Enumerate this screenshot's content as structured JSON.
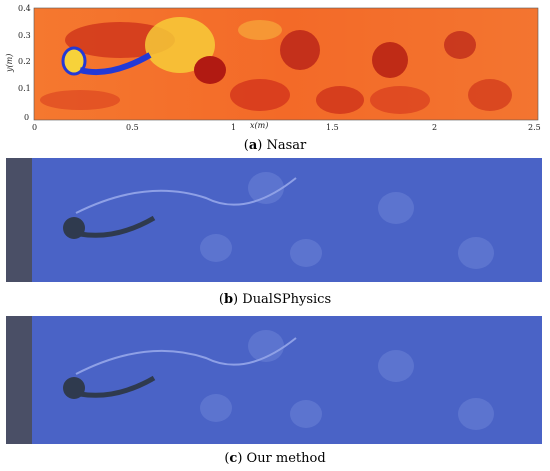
{
  "panel_a": {
    "caption_letter": "a",
    "caption_text": "Nasar",
    "x_axis": {
      "label": "x(m)",
      "ticks": [
        "0",
        "0.5",
        "1",
        "1.5",
        "2",
        "2.5"
      ],
      "range": [
        0,
        2.5
      ]
    },
    "y_axis": {
      "label": "y(m)",
      "ticks": [
        "0",
        "0.1",
        "0.2",
        "0.3",
        "0.4"
      ],
      "range": [
        0,
        0.4
      ]
    },
    "colors": {
      "background": "#f4692a",
      "wake_dark": "#b11a12",
      "high": "#f7d23a",
      "body": "#2339d6"
    }
  },
  "panel_b": {
    "caption_letter": "b",
    "caption_text": "DualSPhysics",
    "colors": {
      "fluid": "#4a63c6",
      "wall": "#4a4f66",
      "body": "#2f3a4e"
    }
  },
  "panel_c": {
    "caption_letter": "c",
    "caption_text": "Our method",
    "colors": {
      "fluid": "#4a63c6",
      "wall": "#4a4f66",
      "body": "#2f3a4e"
    }
  }
}
